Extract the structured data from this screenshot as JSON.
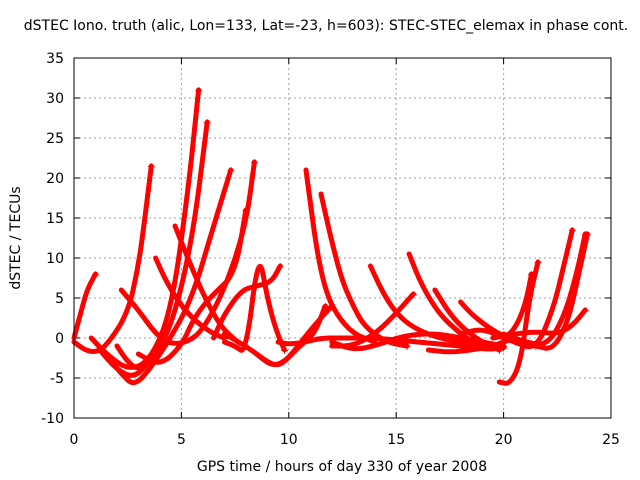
{
  "chart_data": {
    "type": "line",
    "title": "dSTEC Iono. truth (alic, Lon=133, Lat=-23, h=603): STEC-STEC_elemax in phase cont.",
    "xlabel": "GPS time / hours of day 330 of year 2008",
    "ylabel": "dSTEC  / TECUs",
    "xlim": [
      0,
      25
    ],
    "ylim": [
      -10,
      35
    ],
    "xticks": [
      "0",
      "5",
      "10",
      "15",
      "20",
      "25"
    ],
    "yticks": [
      "-10",
      "-5",
      "0",
      "5",
      "10",
      "15",
      "20",
      "25",
      "30",
      "35"
    ],
    "grid": true,
    "legend": "none",
    "color": "#ff0000",
    "series": [
      {
        "x": [
          0.0,
          0.3,
          0.6,
          1.0
        ],
        "y": [
          0.0,
          3.0,
          6.0,
          8.0
        ]
      },
      {
        "x": [
          0.0,
          0.5,
          1.0,
          1.5,
          2.5,
          3.0,
          3.3,
          3.6
        ],
        "y": [
          -0.5,
          -1.5,
          -1.8,
          -1.0,
          3.0,
          9.0,
          15.0,
          21.5
        ]
      },
      {
        "x": [
          0.8,
          1.5,
          2.5,
          3.5,
          4.5,
          5.3,
          5.8
        ],
        "y": [
          0.0,
          -2.0,
          -4.0,
          -3.0,
          3.0,
          18.0,
          31.0
        ]
      },
      {
        "x": [
          1.2,
          2.0,
          2.8,
          3.5,
          4.5,
          5.5,
          6.2
        ],
        "y": [
          -1.5,
          -4.0,
          -5.0,
          -3.0,
          1.0,
          12.0,
          27.0
        ]
      },
      {
        "x": [
          1.5,
          2.2,
          2.8,
          3.5,
          4.5,
          5.5,
          6.5,
          7.3
        ],
        "y": [
          -2.0,
          -4.5,
          -6.0,
          -4.0,
          0.0,
          5.0,
          14.0,
          21.0
        ]
      },
      {
        "x": [
          2.0,
          2.5,
          3.0,
          3.5
        ],
        "y": [
          -1.0,
          -3.0,
          -4.0,
          -2.5
        ]
      },
      {
        "x": [
          2.2,
          3.0,
          3.8,
          4.5,
          5.3,
          6.0,
          7.0,
          8.0,
          8.4
        ],
        "y": [
          6.0,
          3.5,
          0.5,
          -0.8,
          -0.5,
          1.0,
          6.0,
          14.0,
          22.0
        ]
      },
      {
        "x": [
          3.0,
          4.0,
          5.0,
          5.5,
          6.0,
          6.5,
          7.5,
          8.0
        ],
        "y": [
          -2.0,
          -3.5,
          -1.0,
          2.0,
          4.0,
          5.5,
          8.0,
          16.0
        ]
      },
      {
        "x": [
          3.8,
          4.3,
          5.0,
          5.7,
          6.5,
          7.0
        ],
        "y": [
          10.0,
          7.0,
          4.0,
          2.0,
          0.5,
          0.0
        ]
      },
      {
        "x": [
          4.7,
          5.3,
          6.0,
          6.8,
          7.6,
          8.0
        ],
        "y": [
          14.0,
          10.0,
          5.5,
          1.5,
          -0.5,
          -1.0
        ]
      },
      {
        "x": [
          6.5,
          7.0,
          7.8,
          8.5,
          9.2,
          9.6
        ],
        "y": [
          0.0,
          3.0,
          6.0,
          6.5,
          7.0,
          9.0
        ]
      },
      {
        "x": [
          7.0,
          7.5,
          8.0,
          8.6,
          9.0,
          9.4,
          9.8
        ],
        "y": [
          -0.5,
          -1.0,
          -2.0,
          11.0,
          5.0,
          1.0,
          -1.5
        ]
      },
      {
        "x": [
          7.0,
          8.0,
          9.0,
          9.5,
          10.0,
          11.0,
          12.0
        ],
        "y": [
          0.5,
          -1.0,
          -3.0,
          -3.5,
          -2.5,
          1.0,
          4.0
        ]
      },
      {
        "x": [
          8.5,
          9.2,
          9.8,
          10.5,
          11.2,
          11.7
        ],
        "y": [
          -2.0,
          -3.5,
          -3.0,
          -1.0,
          0.5,
          4.0
        ]
      },
      {
        "x": [
          9.5,
          10.0,
          10.8,
          11.5,
          12.5,
          14.0,
          16.0,
          18.0,
          19.5,
          20.0
        ],
        "y": [
          -0.5,
          -0.8,
          -0.5,
          0.0,
          0.0,
          0.0,
          -0.5,
          -1.0,
          -1.5,
          -1.0
        ]
      },
      {
        "x": [
          10.8,
          11.0,
          11.3,
          11.7,
          12.2,
          13.0,
          14.0
        ],
        "y": [
          21.0,
          17.0,
          11.0,
          6.0,
          3.0,
          0.5,
          -0.5
        ]
      },
      {
        "x": [
          11.5,
          12.0,
          12.5,
          13.0,
          13.5,
          14.5,
          15.5
        ],
        "y": [
          18.0,
          12.0,
          7.0,
          4.0,
          1.5,
          -0.5,
          -1.0
        ]
      },
      {
        "x": [
          12.0,
          13.0,
          14.0,
          15.0,
          16.0,
          17.0,
          18.0,
          19.0,
          20.0
        ],
        "y": [
          -0.5,
          -1.5,
          -1.0,
          0.0,
          0.5,
          0.5,
          0.0,
          -0.5,
          -1.0
        ]
      },
      {
        "x": [
          12.0,
          13.0,
          14.0,
          14.8,
          15.8
        ],
        "y": [
          -1.0,
          -1.0,
          0.5,
          2.5,
          5.5
        ]
      },
      {
        "x": [
          13.8,
          14.5,
          15.2,
          16.0,
          17.0,
          18.0,
          19.0
        ],
        "y": [
          9.0,
          5.0,
          2.5,
          1.0,
          0.0,
          -0.5,
          -1.0
        ]
      },
      {
        "x": [
          15.6,
          16.2,
          17.0,
          17.8,
          18.5,
          19.5,
          20.0
        ],
        "y": [
          10.5,
          6.5,
          3.0,
          1.0,
          -0.5,
          -1.0,
          -1.2
        ]
      },
      {
        "x": [
          16.5,
          17.5,
          18.5,
          19.5,
          20.0,
          20.5
        ],
        "y": [
          -1.5,
          -1.8,
          -1.5,
          -1.0,
          -0.5,
          0.0
        ]
      },
      {
        "x": [
          16.8,
          17.5,
          18.2,
          19.0,
          19.8
        ],
        "y": [
          6.0,
          3.0,
          1.0,
          -0.5,
          -1.5
        ]
      },
      {
        "x": [
          18.0,
          18.5,
          19.2,
          19.8,
          20.3
        ],
        "y": [
          4.5,
          3.0,
          1.5,
          0.5,
          0.0
        ]
      },
      {
        "x": [
          18.0,
          19.0,
          20.0,
          20.8,
          21.5
        ],
        "y": [
          0.5,
          1.2,
          0.0,
          -0.8,
          -1.0
        ]
      },
      {
        "x": [
          19.8,
          20.3,
          20.8,
          21.2,
          21.6
        ],
        "y": [
          -5.5,
          -5.8,
          -3.0,
          5.0,
          9.5
        ]
      },
      {
        "x": [
          20.0,
          20.5,
          21.0,
          21.3
        ],
        "y": [
          0.0,
          1.0,
          4.0,
          8.0
        ]
      },
      {
        "x": [
          19.5,
          20.5,
          21.5,
          22.5,
          23.2,
          23.8
        ],
        "y": [
          0.0,
          0.5,
          0.8,
          0.5,
          1.5,
          3.5
        ]
      },
      {
        "x": [
          20.0,
          21.0,
          22.0,
          22.8,
          23.4,
          23.8
        ],
        "y": [
          0.5,
          -0.5,
          -1.0,
          2.5,
          8.0,
          13.0
        ]
      },
      {
        "x": [
          20.5,
          21.5,
          22.3,
          22.8,
          23.2
        ],
        "y": [
          -0.5,
          -1.5,
          3.5,
          9.0,
          13.5
        ]
      },
      {
        "x": [
          21.5,
          22.3,
          23.0,
          23.5,
          23.9
        ],
        "y": [
          -1.0,
          -1.5,
          2.0,
          8.0,
          13.0
        ]
      }
    ]
  }
}
